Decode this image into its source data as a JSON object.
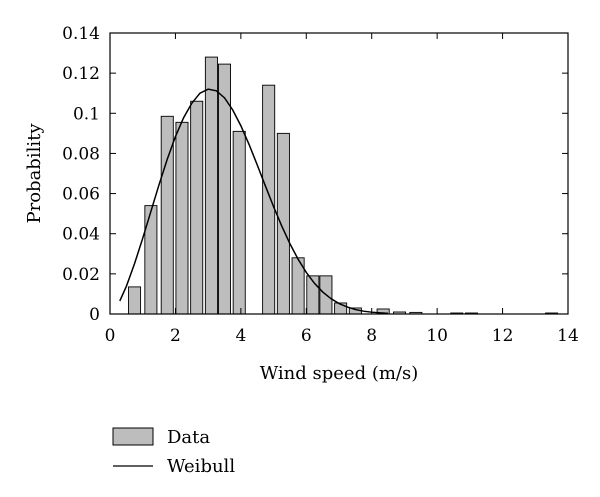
{
  "chart_data": {
    "type": "bar",
    "xlabel": "Wind speed (m/s)",
    "ylabel": "Probability",
    "xlim": [
      0,
      14
    ],
    "ylim": [
      0,
      0.14
    ],
    "xticks": [
      0,
      2,
      4,
      6,
      8,
      10,
      12,
      14
    ],
    "yticks": [
      0,
      0.02,
      0.04,
      0.06,
      0.08,
      0.1,
      0.12,
      0.14
    ],
    "xtick_labels": [
      "0",
      "2",
      "4",
      "6",
      "8",
      "10",
      "12",
      "14"
    ],
    "ytick_labels": [
      "0",
      "0.02",
      "0.04",
      "0.06",
      "0.08",
      "0.1",
      "0.12",
      "0.14"
    ],
    "bar_width": 0.37,
    "bar_color": "#bdbdbd",
    "bars": [
      {
        "x": 0.75,
        "y": 0.0135
      },
      {
        "x": 1.25,
        "y": 0.054
      },
      {
        "x": 1.75,
        "y": 0.0985
      },
      {
        "x": 2.2,
        "y": 0.0955
      },
      {
        "x": 2.65,
        "y": 0.106
      },
      {
        "x": 3.1,
        "y": 0.128
      },
      {
        "x": 3.5,
        "y": 0.1245
      },
      {
        "x": 3.95,
        "y": 0.091
      },
      {
        "x": 4.85,
        "y": 0.114
      },
      {
        "x": 5.3,
        "y": 0.09
      },
      {
        "x": 5.75,
        "y": 0.028
      },
      {
        "x": 6.2,
        "y": 0.019
      },
      {
        "x": 6.6,
        "y": 0.019
      },
      {
        "x": 7.05,
        "y": 0.0055
      },
      {
        "x": 7.5,
        "y": 0.003
      },
      {
        "x": 8.35,
        "y": 0.0025
      },
      {
        "x": 8.85,
        "y": 0.001
      },
      {
        "x": 9.35,
        "y": 0.0008
      },
      {
        "x": 10.6,
        "y": 0.0005
      },
      {
        "x": 11.05,
        "y": 0.0005
      },
      {
        "x": 13.5,
        "y": 0.0005
      }
    ],
    "series": [
      {
        "name": "Weibull",
        "type": "line",
        "color": "#000000",
        "x": [
          0.3,
          0.5,
          0.75,
          1.0,
          1.25,
          1.5,
          1.75,
          2.0,
          2.25,
          2.5,
          2.75,
          3.0,
          3.25,
          3.5,
          3.75,
          4.0,
          4.25,
          4.5,
          4.75,
          5.0,
          5.25,
          5.5,
          5.75,
          6.0,
          6.25,
          6.5,
          6.75,
          7.0,
          7.25,
          7.5,
          7.75,
          8.0,
          8.5
        ],
        "y": [
          0.0065,
          0.0138,
          0.0251,
          0.0377,
          0.0511,
          0.0645,
          0.0771,
          0.0884,
          0.0978,
          0.105,
          0.11,
          0.112,
          0.1112,
          0.1077,
          0.1017,
          0.0938,
          0.0845,
          0.0743,
          0.0638,
          0.0535,
          0.0438,
          0.035,
          0.0273,
          0.0207,
          0.0153,
          0.011,
          0.0077,
          0.0052,
          0.0035,
          0.0022,
          0.0014,
          0.0009,
          0.0003
        ]
      }
    ],
    "legend": {
      "position": "bottom-left",
      "entries": [
        {
          "label": "Data",
          "kind": "bar"
        },
        {
          "label": "Weibull",
          "kind": "line"
        }
      ]
    },
    "grid": false
  }
}
